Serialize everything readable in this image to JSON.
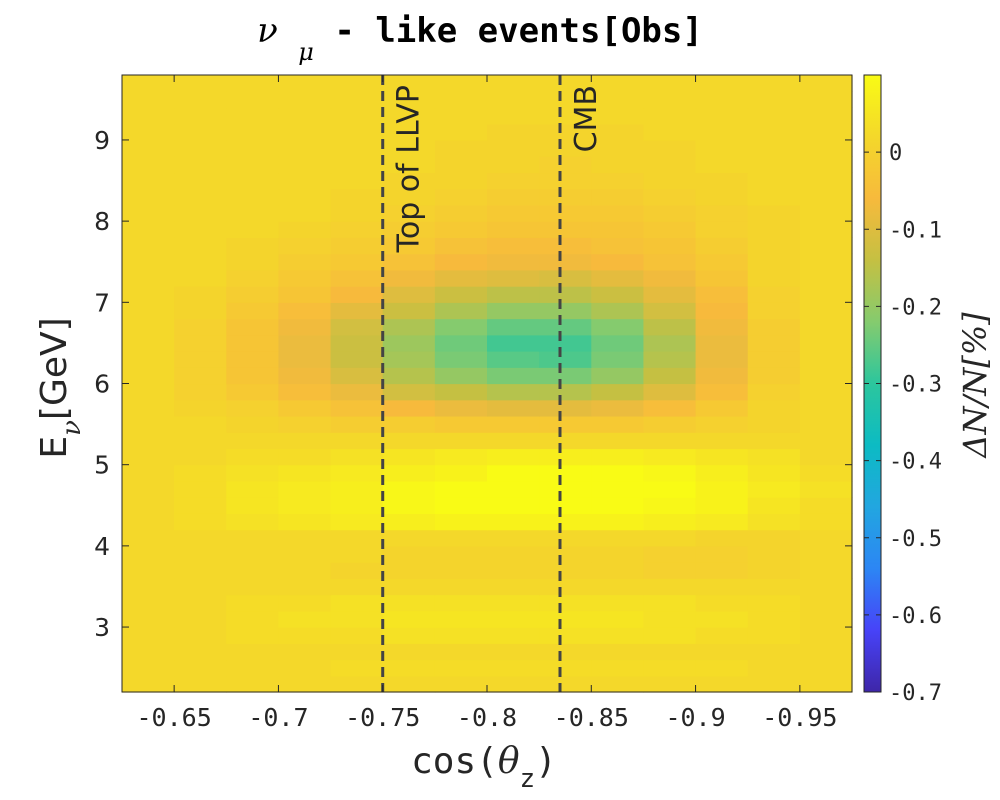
{
  "chart_data": {
    "type": "heatmap",
    "title": {
      "symbol": "ν",
      "subscript": "μ",
      "text": " - like events[Obs]"
    },
    "xlabel": {
      "text": "cos(",
      "symbol": "θ",
      "subscript": "z",
      "close": ")"
    },
    "ylabel": {
      "text": "E",
      "subscript": "ν",
      "unit": "[GeV]"
    },
    "colorbar_label": "ΔN/N[%]",
    "x_axis_reversed": true,
    "xlim": [
      -0.625,
      -0.975
    ],
    "ylim": [
      2.2,
      9.8
    ],
    "x_ticks": [
      -0.65,
      -0.7,
      -0.75,
      -0.8,
      -0.85,
      -0.9,
      -0.95
    ],
    "x_tick_labels": [
      "-0.65",
      "-0.7",
      "-0.75",
      "-0.8",
      "-0.85",
      "-0.9",
      "-0.95"
    ],
    "y_ticks": [
      3,
      4,
      5,
      6,
      7,
      8,
      9
    ],
    "y_tick_labels": [
      "3",
      "4",
      "5",
      "6",
      "7",
      "8",
      "9"
    ],
    "colorbar_range": [
      -0.7,
      0.1
    ],
    "colorbar_ticks": [
      0,
      -0.1,
      -0.2,
      -0.3,
      -0.4,
      -0.5,
      -0.6,
      -0.7
    ],
    "colorbar_tick_labels": [
      "0",
      "-0.1",
      "-0.2",
      "-0.3",
      "-0.4",
      "-0.5",
      "-0.6",
      "-0.7"
    ],
    "colormap": "parula",
    "colormap_stops": [
      "#3e26a8",
      "#4743f8",
      "#2c86f4",
      "#22a6e0",
      "#0cbbc3",
      "#2cc69d",
      "#85cb6e",
      "#c5c042",
      "#f7ba3c",
      "#f4d82a",
      "#f9fb15"
    ],
    "vlines": [
      {
        "x": -0.75,
        "label": "Top of LLVP"
      },
      {
        "x": -0.835,
        "label": "CMB"
      }
    ],
    "x_bin_edges": [
      -0.625,
      -0.65,
      -0.675,
      -0.7,
      -0.725,
      -0.75,
      -0.775,
      -0.8,
      -0.825,
      -0.85,
      -0.875,
      -0.9,
      -0.925,
      -0.95,
      -0.975
    ],
    "y_bin_edges": [
      2.2,
      2.4,
      2.6,
      2.8,
      3.0,
      3.2,
      3.4,
      3.6,
      3.8,
      4.0,
      4.2,
      4.4,
      4.6,
      4.8,
      5.0,
      5.2,
      5.4,
      5.6,
      5.8,
      6.0,
      6.2,
      6.4,
      6.6,
      6.8,
      7.0,
      7.2,
      7.4,
      7.6,
      7.8,
      8.0,
      8.2,
      8.4,
      8.6,
      8.8,
      9.0,
      9.2,
      9.4,
      9.6,
      9.8
    ],
    "values": [
      [
        0.02,
        0.02,
        0.02,
        0.02,
        0.02,
        0.02,
        0.02,
        0.02,
        0.02,
        0.02,
        0.02,
        0.02,
        0.02,
        0.02
      ],
      [
        0.02,
        0.02,
        0.02,
        0.02,
        0.03,
        0.03,
        0.03,
        0.03,
        0.03,
        0.03,
        0.03,
        0.03,
        0.02,
        0.02
      ],
      [
        0.02,
        0.02,
        0.02,
        0.02,
        0.02,
        0.02,
        0.02,
        0.02,
        0.02,
        0.02,
        0.02,
        0.02,
        0.02,
        0.02
      ],
      [
        0.02,
        0.02,
        0.03,
        0.03,
        0.03,
        0.04,
        0.04,
        0.04,
        0.04,
        0.04,
        0.04,
        0.03,
        0.03,
        0.02
      ],
      [
        0.02,
        0.02,
        0.03,
        0.04,
        0.04,
        0.05,
        0.05,
        0.05,
        0.05,
        0.05,
        0.04,
        0.04,
        0.03,
        0.02
      ],
      [
        0.02,
        0.02,
        0.03,
        0.03,
        0.04,
        0.04,
        0.04,
        0.04,
        0.04,
        0.04,
        0.04,
        0.03,
        0.03,
        0.02
      ],
      [
        0.02,
        0.02,
        0.02,
        0.02,
        0.02,
        0.02,
        0.02,
        0.02,
        0.02,
        0.02,
        0.02,
        0.02,
        0.02,
        0.02
      ],
      [
        0.02,
        0.02,
        0.02,
        0.02,
        0.01,
        0.01,
        0.01,
        0.01,
        0.01,
        0.01,
        0.0,
        0.0,
        0.01,
        0.02
      ],
      [
        0.02,
        0.02,
        0.02,
        0.02,
        0.02,
        0.01,
        0.01,
        0.01,
        0.01,
        0.01,
        0.0,
        0.0,
        0.01,
        0.02
      ],
      [
        0.02,
        0.02,
        0.02,
        0.02,
        0.02,
        0.02,
        0.02,
        0.02,
        0.02,
        0.02,
        0.02,
        0.01,
        0.01,
        0.02
      ],
      [
        0.02,
        0.03,
        0.04,
        0.05,
        0.06,
        0.07,
        0.08,
        0.08,
        0.08,
        0.08,
        0.07,
        0.06,
        0.04,
        0.03
      ],
      [
        0.02,
        0.03,
        0.05,
        0.06,
        0.07,
        0.09,
        0.1,
        0.1,
        0.1,
        0.1,
        0.09,
        0.08,
        0.05,
        0.03
      ],
      [
        0.02,
        0.03,
        0.05,
        0.06,
        0.07,
        0.09,
        0.1,
        0.1,
        0.1,
        0.1,
        0.1,
        0.08,
        0.06,
        0.04
      ],
      [
        0.02,
        0.03,
        0.04,
        0.05,
        0.06,
        0.07,
        0.08,
        0.1,
        0.1,
        0.1,
        0.09,
        0.07,
        0.05,
        0.03
      ],
      [
        0.02,
        0.02,
        0.03,
        0.03,
        0.04,
        0.05,
        0.06,
        0.07,
        0.07,
        0.07,
        0.06,
        0.05,
        0.04,
        0.02
      ],
      [
        0.02,
        0.02,
        0.02,
        0.02,
        0.02,
        0.02,
        0.02,
        0.02,
        0.02,
        0.02,
        0.02,
        0.02,
        0.02,
        0.02
      ],
      [
        0.02,
        0.02,
        0.01,
        0.0,
        -0.01,
        -0.01,
        -0.02,
        -0.02,
        -0.02,
        -0.02,
        -0.01,
        0.0,
        0.01,
        0.02
      ],
      [
        0.02,
        0.01,
        0.0,
        -0.02,
        -0.04,
        -0.06,
        -0.08,
        -0.09,
        -0.09,
        -0.08,
        -0.05,
        -0.02,
        0.01,
        0.02
      ],
      [
        0.02,
        0.0,
        -0.02,
        -0.05,
        -0.08,
        -0.12,
        -0.14,
        -0.16,
        -0.16,
        -0.14,
        -0.1,
        -0.05,
        0.0,
        0.02
      ],
      [
        0.02,
        0.0,
        -0.03,
        -0.07,
        -0.11,
        -0.16,
        -0.2,
        -0.23,
        -0.23,
        -0.2,
        -0.14,
        -0.07,
        -0.01,
        0.02
      ],
      [
        0.02,
        0.0,
        -0.03,
        -0.08,
        -0.13,
        -0.18,
        -0.23,
        -0.26,
        -0.27,
        -0.23,
        -0.16,
        -0.08,
        -0.01,
        0.02
      ],
      [
        0.02,
        0.0,
        -0.03,
        -0.08,
        -0.13,
        -0.19,
        -0.24,
        -0.28,
        -0.28,
        -0.24,
        -0.17,
        -0.08,
        -0.01,
        0.02
      ],
      [
        0.02,
        0.0,
        -0.03,
        -0.07,
        -0.12,
        -0.17,
        -0.22,
        -0.25,
        -0.25,
        -0.22,
        -0.15,
        -0.07,
        -0.01,
        0.02
      ],
      [
        0.02,
        0.01,
        -0.02,
        -0.05,
        -0.09,
        -0.13,
        -0.17,
        -0.2,
        -0.2,
        -0.17,
        -0.12,
        -0.06,
        0.0,
        0.02
      ],
      [
        0.02,
        0.01,
        -0.01,
        -0.03,
        -0.06,
        -0.1,
        -0.13,
        -0.15,
        -0.15,
        -0.13,
        -0.09,
        -0.05,
        0.0,
        0.02
      ],
      [
        0.02,
        0.02,
        0.0,
        -0.02,
        -0.04,
        -0.07,
        -0.09,
        -0.1,
        -0.11,
        -0.09,
        -0.07,
        -0.03,
        0.01,
        0.02
      ],
      [
        0.02,
        0.02,
        0.01,
        -0.01,
        -0.02,
        -0.04,
        -0.06,
        -0.07,
        -0.07,
        -0.06,
        -0.04,
        -0.02,
        0.01,
        0.02
      ],
      [
        0.02,
        0.02,
        0.01,
        0.0,
        -0.01,
        -0.02,
        -0.04,
        -0.05,
        -0.05,
        -0.04,
        -0.03,
        -0.01,
        0.01,
        0.02
      ],
      [
        0.02,
        0.02,
        0.02,
        0.01,
        0.0,
        -0.01,
        -0.02,
        -0.03,
        -0.03,
        -0.03,
        -0.02,
        0.0,
        0.01,
        0.02
      ],
      [
        0.02,
        0.02,
        0.02,
        0.02,
        0.01,
        0.0,
        -0.01,
        -0.02,
        -0.02,
        -0.02,
        -0.01,
        0.0,
        0.01,
        0.02
      ],
      [
        0.02,
        0.02,
        0.02,
        0.02,
        0.01,
        0.01,
        0.0,
        -0.01,
        -0.01,
        -0.01,
        0.0,
        0.01,
        0.02,
        0.02
      ],
      [
        0.02,
        0.02,
        0.02,
        0.02,
        0.02,
        0.01,
        0.01,
        0.0,
        0.0,
        0.0,
        0.01,
        0.01,
        0.02,
        0.02
      ],
      [
        0.02,
        0.02,
        0.02,
        0.02,
        0.02,
        0.02,
        0.01,
        0.01,
        0.0,
        0.01,
        0.01,
        0.02,
        0.02,
        0.02
      ],
      [
        0.02,
        0.02,
        0.02,
        0.02,
        0.02,
        0.02,
        0.01,
        0.01,
        0.01,
        0.01,
        0.01,
        0.02,
        0.02,
        0.02
      ],
      [
        0.02,
        0.02,
        0.02,
        0.02,
        0.02,
        0.02,
        0.02,
        0.01,
        0.01,
        0.01,
        0.02,
        0.02,
        0.02,
        0.02
      ],
      [
        0.02,
        0.02,
        0.02,
        0.02,
        0.02,
        0.02,
        0.02,
        0.02,
        0.02,
        0.02,
        0.02,
        0.02,
        0.02,
        0.02
      ],
      [
        0.02,
        0.02,
        0.02,
        0.02,
        0.02,
        0.02,
        0.02,
        0.02,
        0.02,
        0.02,
        0.02,
        0.02,
        0.02,
        0.02
      ],
      [
        0.02,
        0.02,
        0.02,
        0.02,
        0.02,
        0.02,
        0.02,
        0.02,
        0.02,
        0.02,
        0.02,
        0.02,
        0.02,
        0.02
      ]
    ]
  }
}
